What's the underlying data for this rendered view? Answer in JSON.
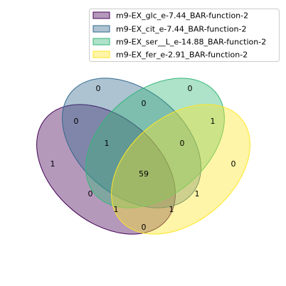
{
  "legend": {
    "items": [
      {
        "label": "m9-EX_glc_e-7.44_BAR-function-2",
        "color": "#440154"
      },
      {
        "label": "m9-EX_cit_e-7.44_BAR-function-2",
        "color": "#31688e"
      },
      {
        "label": "m9-EX_ser__L_e-14.88_BAR-function-2",
        "color": "#35b779"
      },
      {
        "label": "m9-EX_fer_e-2.91_BAR-function-2",
        "color": "#fde725"
      }
    ]
  },
  "regions": {
    "ser_only": "0",
    "cit_only": "0",
    "cit_ser": "0",
    "glc_cit": "0",
    "fer_only_upper": "1",
    "glc_cit_ser": "1",
    "cit_ser_fer": "0",
    "glc_only": "1",
    "fer_only": "0",
    "all_four": "59",
    "glc_ser": "0",
    "ser_fer": "1",
    "glc_ser_fer": "1",
    "glc_cit_fer": "1",
    "glc_fer": "0"
  }
}
